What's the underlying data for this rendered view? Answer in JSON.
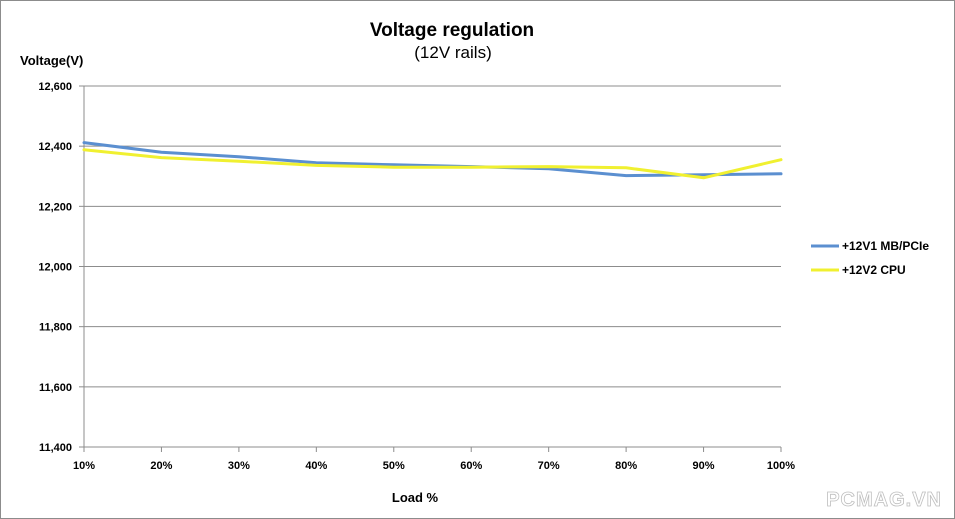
{
  "chart_data": {
    "type": "line",
    "title": "Voltage regulation",
    "subtitle": "(12V rails)",
    "ylabel": "Voltage(V)",
    "xlabel": "Load %",
    "categories": [
      "10%",
      "20%",
      "30%",
      "40%",
      "50%",
      "60%",
      "70%",
      "80%",
      "90%",
      "100%"
    ],
    "y_ticks": [
      "11,400",
      "11,600",
      "11,800",
      "12,000",
      "12,200",
      "12,400",
      "12,600"
    ],
    "ylim": [
      11400,
      12600
    ],
    "grid": true,
    "legend_position": "right",
    "series": [
      {
        "name": "+12V1 MB/PCIe",
        "color": "#5b8fd0",
        "values": [
          12412,
          12380,
          12365,
          12345,
          12338,
          12332,
          12325,
          12302,
          12305,
          12308
        ]
      },
      {
        "name": "+12V2 CPU",
        "color": "#f0f030",
        "values": [
          12388,
          12362,
          12350,
          12336,
          12330,
          12330,
          12332,
          12328,
          12295,
          12355
        ]
      }
    ]
  },
  "watermark": "PCMAG.VN"
}
